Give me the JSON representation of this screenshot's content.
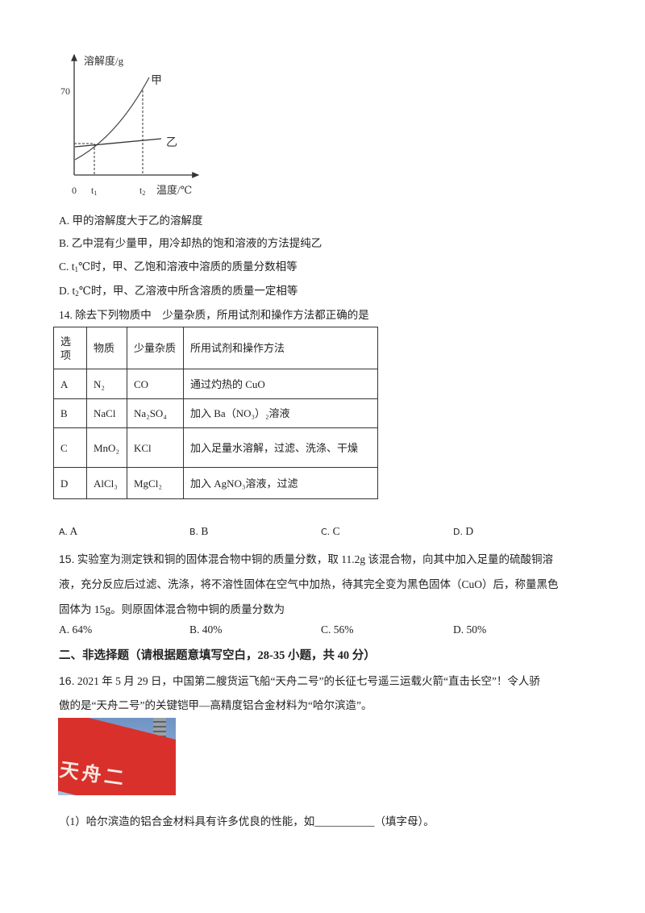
{
  "graph": {
    "y_label": "溶解度/g",
    "x_label": "温度/℃",
    "y_tick": "70",
    "x_ticks": [
      "0",
      "t",
      "t"
    ],
    "x_tick_subs": [
      "",
      "1",
      "2"
    ],
    "series_labels": [
      "甲",
      "乙"
    ]
  },
  "q13_options": [
    "A. 甲的溶解度大于乙的溶解度",
    "B. 乙中混有少量甲，用冷却热的饱和溶液的方法提纯乙",
    [
      "C. t",
      "1",
      "℃时，甲、乙饱和溶液中溶质的质量分数相等"
    ],
    [
      "D. t",
      "2",
      "℃时，甲、乙溶液中所含溶质的质量一定相等"
    ]
  ],
  "q14": {
    "number": "14.",
    "stem": "除去下列物质中　少量杂质，所用试剂和操作方法都正确的是",
    "table": {
      "headers": [
        "选项",
        "物质",
        "少量杂质",
        "所用试剂和操作方法"
      ],
      "rows": [
        [
          "A",
          "N₂",
          "CO",
          "通过灼热的 CuO"
        ],
        [
          "B",
          "NaCl",
          "Na₂SO₄",
          "加入 Ba（NO₃）₂溶液"
        ],
        [
          "C",
          "MnO₂",
          "KCl",
          "加入足量水溶解，过滤、洗涤、干燥"
        ],
        [
          "D",
          "AlCl₃",
          "MgCl₂",
          "加入 AgNO₃溶液，过滤"
        ]
      ]
    },
    "options": [
      {
        "letter": "A.",
        "text": "A"
      },
      {
        "letter": "B.",
        "text": "B"
      },
      {
        "letter": "C.",
        "text": "C"
      },
      {
        "letter": "D.",
        "text": "D"
      }
    ]
  },
  "q15": {
    "number": "15.",
    "lines": [
      "实验室为测定铁和铜的固体混合物中铜的质量分数，取 11.2g 该混合物，向其中加入足量的硫酸铜溶",
      "液，充分反应后过滤、洗涤，将不溶性固体在空气中加热，待其完全变为黑色固体（CuO）后，称量黑色",
      "固体为 15g。则原固体混合物中铜的质量分数为"
    ],
    "options": [
      "A. 64%",
      "B. 40%",
      "C. 56%",
      "D. 50%"
    ]
  },
  "section2_title": "二、非选择题（请根据题意填写空白，28-35 小题，共 40 分）",
  "q16": {
    "number": "16.",
    "lines": [
      "2021 年 5 月 29 日，中国第二艘货运飞船“天舟二号”的长征七号遥三运载火箭“直击长空”！令人骄",
      "傲的是“天舟二号”的关键铠甲—高精度铝合金材料为“哈尔滨造”。"
    ],
    "photo_banner_text": "天舟二",
    "sub1": "（1）哈尔滨造的铝合金材料具有许多优良的性能，如___________（填字母）。"
  },
  "colors": {
    "text": "#222222",
    "flag_red": "#d9302c",
    "sky": "#8fb0d8"
  }
}
